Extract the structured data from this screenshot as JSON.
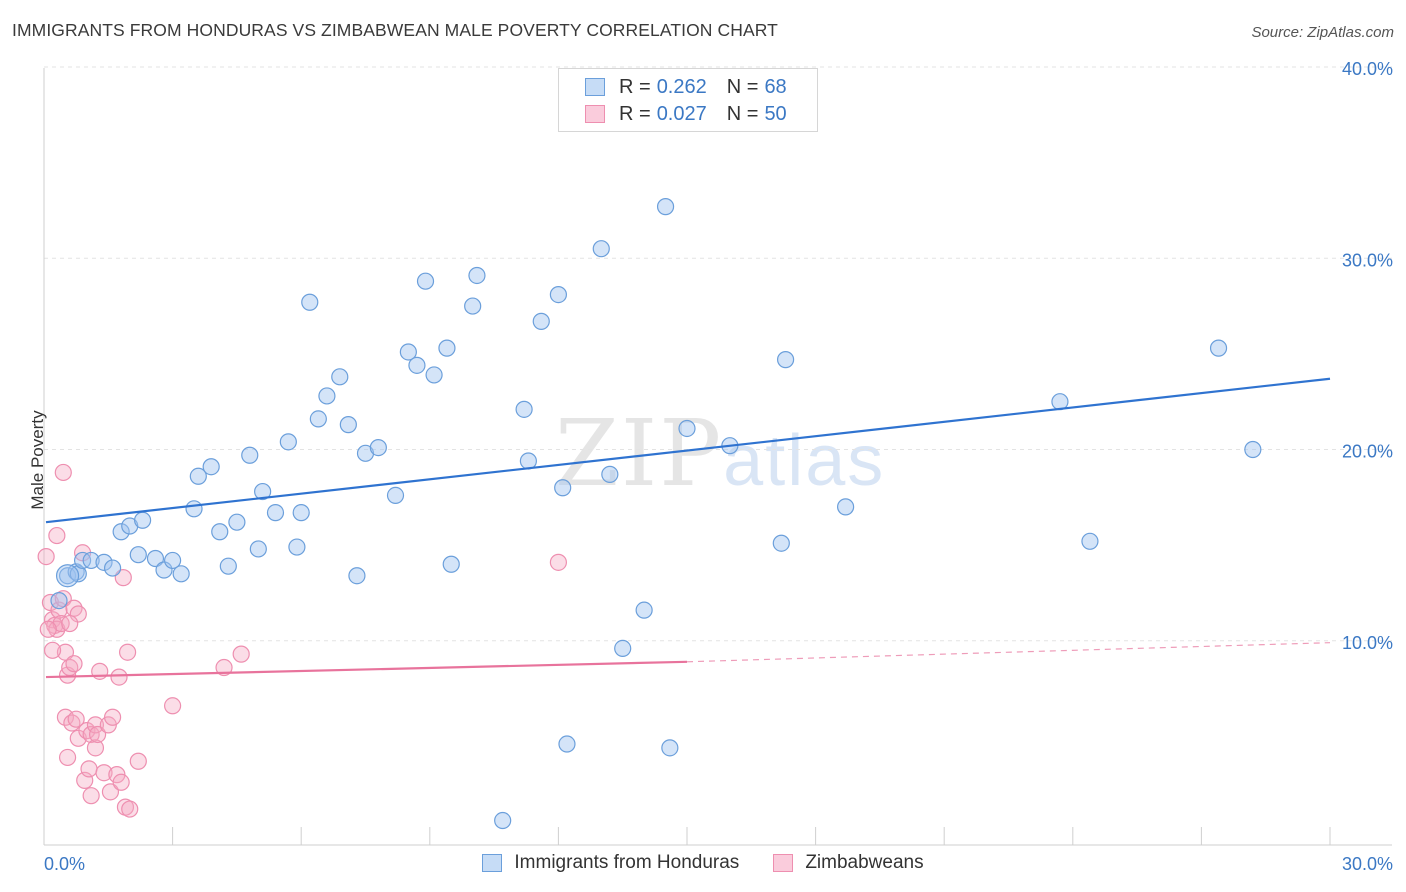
{
  "title": "IMMIGRANTS FROM HONDURAS VS ZIMBABWEAN MALE POVERTY CORRELATION CHART",
  "source": "Source: ZipAtlas.com",
  "watermark": {
    "zip": "ZIP",
    "atlas": "atlas"
  },
  "legend": {
    "series1": {
      "r_label": "R = ",
      "r_value": "0.262",
      "n_label": "N = ",
      "n_value": "68"
    },
    "series2": {
      "r_label": "R = ",
      "r_value": "0.027",
      "n_label": "N = ",
      "n_value": "50"
    }
  },
  "bottom_legend": {
    "series1": "Immigrants from Honduras",
    "series2": "Zimbabweans"
  },
  "colors": {
    "blue_fill": "rgba(160,196,240,0.45)",
    "blue_stroke": "#6b9fdb",
    "blue_line": "#2f73d0",
    "pink_fill": "rgba(246,170,196,0.40)",
    "pink_stroke": "#ee8fb0",
    "pink_line": "#e8739c",
    "tick_label": "#3b78c4",
    "grid": "#e3e3e3"
  },
  "chart_data": {
    "type": "scatter",
    "title": "IMMIGRANTS FROM HONDURAS VS ZIMBABWEAN MALE POVERTY CORRELATION CHART",
    "xlabel": "",
    "ylabel": "Male Poverty",
    "xlim": [
      0,
      30
    ],
    "ylim": [
      0,
      40
    ],
    "x_tick_labels": [
      "0.0%",
      "30.0%"
    ],
    "y_ticks": [
      10,
      20,
      30,
      40
    ],
    "y_tick_labels": [
      "10.0%",
      "20.0%",
      "30.0%",
      "40.0%"
    ],
    "series": [
      {
        "name": "Immigrants from Honduras",
        "color": "blue",
        "points": [
          [
            0.55,
            13.4
          ],
          [
            0.75,
            13.6
          ],
          [
            0.8,
            13.5
          ],
          [
            0.9,
            14.2
          ],
          [
            1.1,
            14.2
          ],
          [
            1.4,
            14.1
          ],
          [
            1.6,
            13.8
          ],
          [
            1.8,
            15.7
          ],
          [
            2.0,
            16.0
          ],
          [
            2.3,
            16.3
          ],
          [
            2.2,
            14.5
          ],
          [
            2.6,
            14.3
          ],
          [
            2.8,
            13.7
          ],
          [
            3.0,
            14.2
          ],
          [
            3.2,
            13.5
          ],
          [
            3.5,
            16.9
          ],
          [
            3.6,
            18.6
          ],
          [
            3.9,
            19.1
          ],
          [
            4.1,
            15.7
          ],
          [
            4.3,
            13.9
          ],
          [
            4.5,
            16.2
          ],
          [
            4.8,
            19.7
          ],
          [
            5.0,
            14.8
          ],
          [
            5.1,
            17.8
          ],
          [
            5.4,
            16.7
          ],
          [
            5.7,
            20.4
          ],
          [
            5.9,
            14.9
          ],
          [
            6.0,
            16.7
          ],
          [
            6.2,
            27.7
          ],
          [
            6.4,
            21.6
          ],
          [
            6.6,
            22.8
          ],
          [
            6.9,
            23.8
          ],
          [
            7.1,
            21.3
          ],
          [
            7.3,
            13.4
          ],
          [
            7.5,
            19.8
          ],
          [
            7.8,
            20.1
          ],
          [
            8.2,
            17.6
          ],
          [
            8.5,
            25.1
          ],
          [
            8.7,
            24.4
          ],
          [
            8.9,
            28.8
          ],
          [
            9.1,
            23.9
          ],
          [
            9.4,
            25.3
          ],
          [
            9.5,
            14.0
          ],
          [
            10.0,
            27.5
          ],
          [
            10.1,
            29.1
          ],
          [
            10.7,
            0.6
          ],
          [
            11.2,
            22.1
          ],
          [
            11.3,
            19.4
          ],
          [
            11.6,
            26.7
          ],
          [
            12.0,
            28.1
          ],
          [
            12.1,
            18.0
          ],
          [
            12.2,
            4.6
          ],
          [
            13.0,
            30.5
          ],
          [
            13.2,
            18.7
          ],
          [
            13.5,
            9.6
          ],
          [
            14.0,
            11.6
          ],
          [
            14.5,
            32.7
          ],
          [
            14.6,
            4.4
          ],
          [
            15.0,
            21.1
          ],
          [
            16.0,
            20.2
          ],
          [
            17.3,
            24.7
          ],
          [
            17.2,
            15.1
          ],
          [
            18.7,
            17.0
          ],
          [
            23.7,
            22.5
          ],
          [
            24.4,
            15.2
          ],
          [
            27.4,
            25.3
          ],
          [
            28.2,
            20.0
          ],
          [
            0.35,
            12.1
          ]
        ],
        "trend": {
          "x": [
            0,
            30
          ],
          "y": [
            16.2,
            23.7
          ]
        }
      },
      {
        "name": "Zimbabweans",
        "color": "pink",
        "points": [
          [
            0.05,
            14.4
          ],
          [
            0.15,
            12.0
          ],
          [
            0.2,
            11.1
          ],
          [
            0.25,
            10.8
          ],
          [
            0.3,
            10.6
          ],
          [
            0.35,
            11.6
          ],
          [
            0.4,
            10.9
          ],
          [
            0.45,
            12.2
          ],
          [
            0.5,
            9.4
          ],
          [
            0.55,
            8.2
          ],
          [
            0.6,
            8.6
          ],
          [
            0.7,
            11.7
          ],
          [
            0.8,
            11.4
          ],
          [
            0.3,
            15.5
          ],
          [
            0.45,
            18.8
          ],
          [
            0.5,
            6.0
          ],
          [
            0.55,
            3.9
          ],
          [
            0.65,
            5.7
          ],
          [
            0.7,
            8.8
          ],
          [
            0.75,
            5.9
          ],
          [
            0.8,
            4.9
          ],
          [
            0.9,
            14.6
          ],
          [
            0.95,
            2.7
          ],
          [
            1.0,
            5.3
          ],
          [
            1.05,
            3.3
          ],
          [
            1.1,
            1.9
          ],
          [
            1.1,
            5.1
          ],
          [
            1.2,
            5.6
          ],
          [
            1.2,
            4.4
          ],
          [
            1.25,
            5.1
          ],
          [
            1.3,
            8.4
          ],
          [
            1.4,
            3.1
          ],
          [
            1.5,
            5.6
          ],
          [
            1.55,
            2.1
          ],
          [
            1.6,
            6.0
          ],
          [
            1.7,
            3.0
          ],
          [
            1.75,
            8.1
          ],
          [
            1.8,
            2.6
          ],
          [
            1.85,
            13.3
          ],
          [
            1.9,
            1.3
          ],
          [
            1.95,
            9.4
          ],
          [
            2.0,
            1.2
          ],
          [
            2.2,
            3.7
          ],
          [
            3.0,
            6.6
          ],
          [
            4.2,
            8.6
          ],
          [
            4.6,
            9.3
          ],
          [
            12.0,
            14.1
          ],
          [
            0.1,
            10.6
          ],
          [
            0.2,
            9.5
          ],
          [
            0.6,
            10.9
          ]
        ],
        "trend": {
          "x": [
            0,
            15
          ],
          "y": [
            8.1,
            8.9
          ]
        },
        "trend_dashed": {
          "x": [
            15,
            30
          ],
          "y": [
            8.9,
            9.9
          ]
        }
      }
    ]
  },
  "y_axis_title": "Male Poverty"
}
